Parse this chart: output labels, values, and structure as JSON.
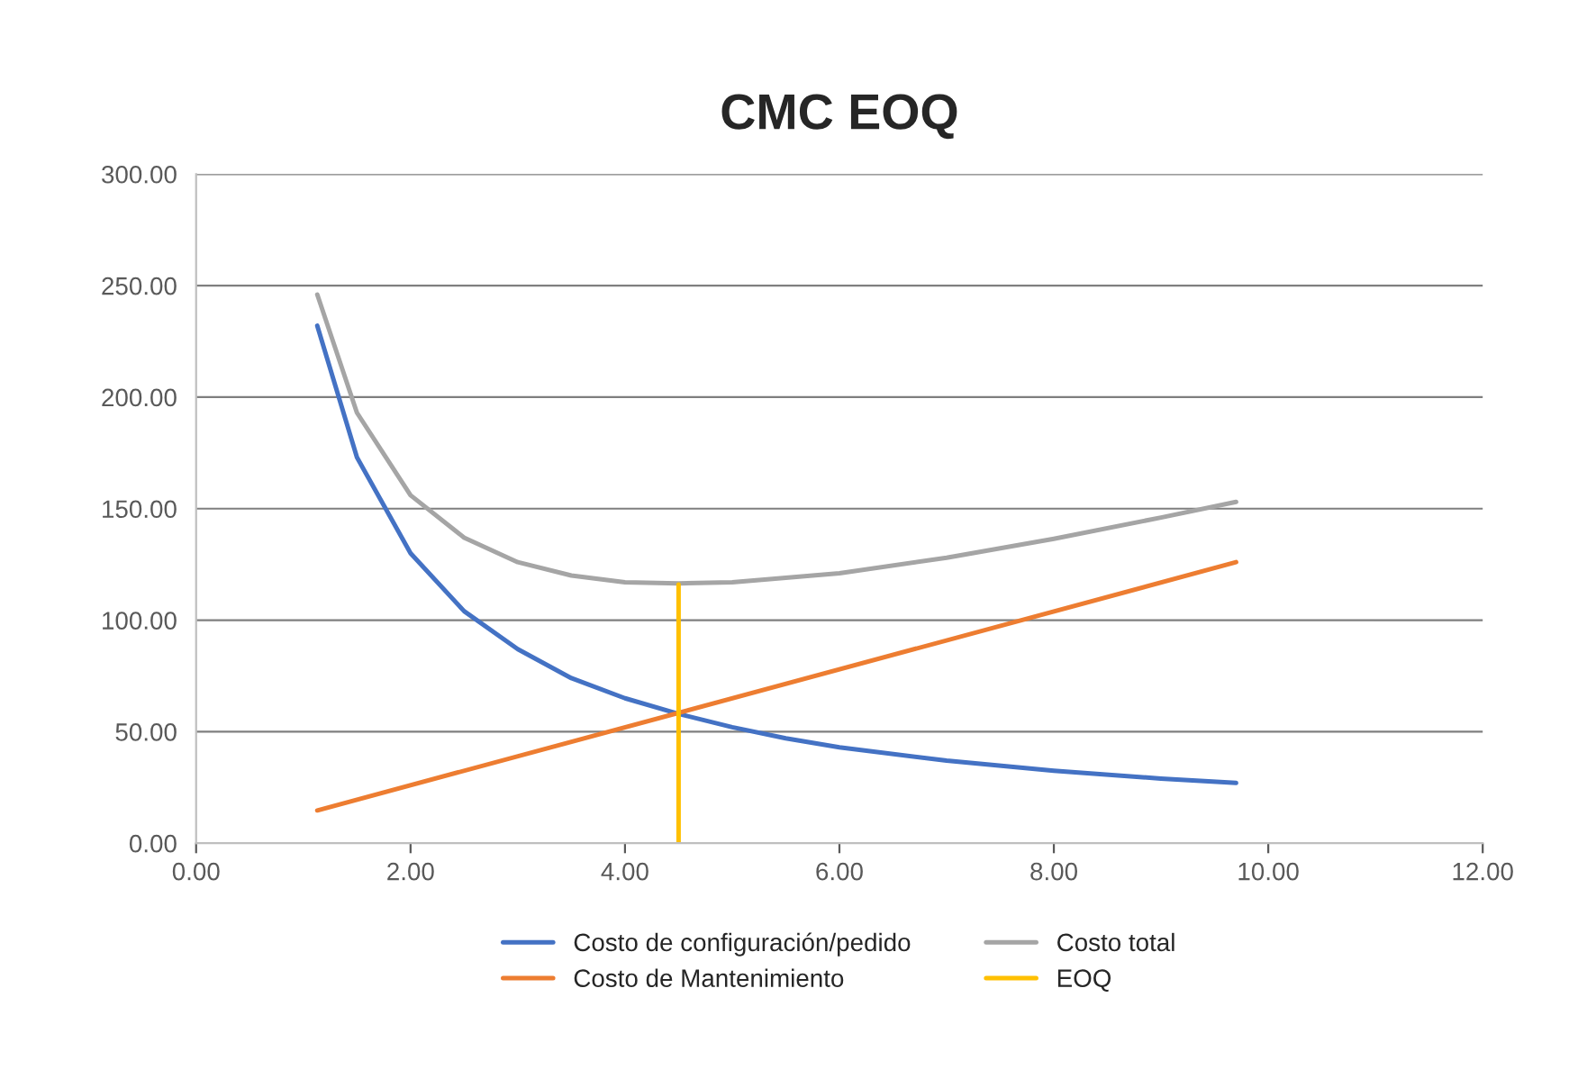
{
  "chart_data": {
    "type": "line",
    "title": "CMC EOQ",
    "series": [
      {
        "name": "Costo de configuración/pedido",
        "color": "#4472c4",
        "x": [
          1.13,
          1.5,
          2,
          2.5,
          3,
          3.5,
          4,
          4.5,
          5,
          5.5,
          6,
          7,
          8,
          9,
          9.7
        ],
        "values": [
          232,
          173,
          130,
          104,
          87,
          74,
          65,
          58,
          52,
          47,
          43,
          37,
          32.5,
          29,
          27
        ]
      },
      {
        "name": "Costo de Mantenimiento",
        "color": "#ed7d31",
        "x": [
          1.13,
          9.7
        ],
        "values": [
          14.7,
          126
        ]
      },
      {
        "name": "Costo total",
        "color": "#a5a5a5",
        "x": [
          1.13,
          1.5,
          2,
          2.5,
          3,
          3.5,
          4,
          4.5,
          5,
          5.5,
          6,
          7,
          8,
          9,
          9.7
        ],
        "values": [
          246,
          193,
          156,
          137,
          126,
          120,
          117,
          116.5,
          117,
          119,
          121,
          128,
          136.5,
          146,
          153
        ]
      },
      {
        "name": "EOQ",
        "color": "#ffc000",
        "x": [
          4.5,
          4.5
        ],
        "values": [
          0,
          116
        ]
      }
    ],
    "xlim": [
      0,
      12
    ],
    "xticks": [
      {
        "value": 0,
        "label": "0.00"
      },
      {
        "value": 2,
        "label": "2.00"
      },
      {
        "value": 4,
        "label": "4.00"
      },
      {
        "value": 6,
        "label": "6.00"
      },
      {
        "value": 8,
        "label": "8.00"
      },
      {
        "value": 10,
        "label": "10.00"
      },
      {
        "value": 12,
        "label": "12.00"
      }
    ],
    "ylim": [
      0,
      300
    ],
    "yticks": [
      {
        "value": 0,
        "label": "0.00"
      },
      {
        "value": 50,
        "label": "50.00"
      },
      {
        "value": 100,
        "label": "100.00"
      },
      {
        "value": 150,
        "label": "150.00"
      },
      {
        "value": 200,
        "label": "200.00"
      },
      {
        "value": 250,
        "label": "250.00"
      },
      {
        "value": 300,
        "label": "300.00"
      }
    ],
    "grid": "y",
    "legend": "bottom",
    "marker": "none",
    "line_style": "solid"
  }
}
